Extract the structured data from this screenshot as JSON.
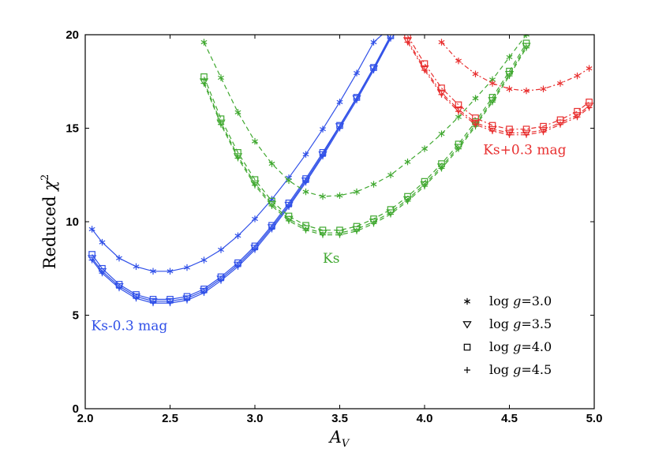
{
  "chart_data": {
    "type": "line",
    "xlabel": "A_V",
    "ylabel": "Reduced χ²",
    "xlim": [
      2.0,
      5.0
    ],
    "ylim": [
      0,
      20
    ],
    "xticks": [
      "2.0",
      "2.5",
      "3.0",
      "3.5",
      "4.0",
      "4.5",
      "5.0"
    ],
    "yticks": [
      "0",
      "5",
      "10",
      "15",
      "20"
    ],
    "legend_position": "bottom-right",
    "legend": [
      {
        "label": "log g=3.0",
        "marker": "asterisk"
      },
      {
        "label": "log g=3.5",
        "marker": "triangle-down"
      },
      {
        "label": "log g=4.0",
        "marker": "square"
      },
      {
        "label": "log g=4.5",
        "marker": "plus"
      }
    ],
    "annotations": [
      {
        "text": "Ks-0.3 mag",
        "color": "#3050e8",
        "at": [
          2.26,
          4.2
        ]
      },
      {
        "text": "Ks",
        "color": "#40a830",
        "at": [
          3.45,
          7.8
        ]
      },
      {
        "text": "Ks+0.3 mag",
        "color": "#e83030",
        "at": [
          4.59,
          13.6
        ]
      }
    ],
    "groups": [
      {
        "name": "Ks-0.3 mag",
        "color": "#3050e8",
        "series": [
          {
            "logg": 3.0,
            "marker": "asterisk",
            "x": [
              2.04,
              2.1,
              2.2,
              2.3,
              2.4,
              2.5,
              2.6,
              2.7,
              2.8,
              2.9,
              3.0,
              3.1,
              3.2,
              3.3,
              3.4,
              3.5,
              3.6,
              3.7,
              3.8
            ],
            "y": [
              9.6,
              8.9,
              8.05,
              7.6,
              7.35,
              7.35,
              7.55,
              7.95,
              8.5,
              9.25,
              10.15,
              11.2,
              12.35,
              13.6,
              14.95,
              16.4,
              17.95,
              19.6,
              20.4
            ]
          },
          {
            "logg": 3.5,
            "marker": "triangle-down",
            "x": [
              2.04,
              2.1,
              2.2,
              2.3,
              2.4,
              2.5,
              2.6,
              2.7,
              2.8,
              2.9,
              3.0,
              3.1,
              3.2,
              3.3,
              3.4,
              3.5,
              3.6,
              3.7,
              3.8
            ],
            "y": [
              8.05,
              7.35,
              6.55,
              6.0,
              5.75,
              5.75,
              5.9,
              6.3,
              6.95,
              7.7,
              8.6,
              9.7,
              10.9,
              12.2,
              13.6,
              15.1,
              16.6,
              18.2,
              19.9
            ]
          },
          {
            "logg": 4.0,
            "marker": "square",
            "x": [
              2.04,
              2.1,
              2.2,
              2.3,
              2.4,
              2.5,
              2.6,
              2.7,
              2.8,
              2.9,
              3.0,
              3.1,
              3.2,
              3.3,
              3.4,
              3.5,
              3.6,
              3.7,
              3.8
            ],
            "y": [
              8.25,
              7.5,
              6.65,
              6.1,
              5.85,
              5.85,
              6.0,
              6.4,
              7.05,
              7.8,
              8.7,
              9.8,
              11.0,
              12.3,
              13.7,
              15.15,
              16.65,
              18.25,
              19.95
            ]
          },
          {
            "logg": 4.5,
            "marker": "plus",
            "x": [
              2.04,
              2.1,
              2.2,
              2.3,
              2.4,
              2.5,
              2.6,
              2.7,
              2.8,
              2.9,
              3.0,
              3.1,
              3.2,
              3.3,
              3.4,
              3.5,
              3.6,
              3.7,
              3.8
            ],
            "y": [
              7.95,
              7.25,
              6.45,
              5.9,
              5.65,
              5.65,
              5.8,
              6.2,
              6.85,
              7.6,
              8.5,
              9.6,
              10.8,
              12.1,
              13.5,
              15.0,
              16.5,
              18.1,
              19.8
            ]
          }
        ]
      },
      {
        "name": "Ks",
        "color": "#40a830",
        "series": [
          {
            "logg": 3.0,
            "marker": "asterisk",
            "x": [
              2.7,
              2.8,
              2.9,
              3.0,
              3.1,
              3.2,
              3.3,
              3.4,
              3.5,
              3.6,
              3.7,
              3.8,
              3.9,
              4.0,
              4.1,
              4.2,
              4.3,
              4.4,
              4.5,
              4.6
            ],
            "y": [
              19.6,
              17.7,
              15.85,
              14.3,
              13.1,
              12.2,
              11.6,
              11.35,
              11.4,
              11.6,
              12.0,
              12.5,
              13.2,
              13.9,
              14.7,
              15.6,
              16.6,
              17.6,
              18.8,
              20.0
            ]
          },
          {
            "logg": 3.5,
            "marker": "triangle-down",
            "x": [
              2.7,
              2.8,
              2.9,
              3.0,
              3.1,
              3.2,
              3.3,
              3.4,
              3.5,
              3.6,
              3.7,
              3.8,
              3.9,
              4.0,
              4.1,
              4.2,
              4.3,
              4.4,
              4.5,
              4.6
            ],
            "y": [
              17.5,
              15.3,
              13.5,
              12.05,
              10.95,
              10.15,
              9.65,
              9.4,
              9.4,
              9.6,
              10.0,
              10.5,
              11.2,
              12.0,
              12.95,
              14.0,
              15.2,
              16.5,
              17.9,
              19.4
            ]
          },
          {
            "logg": 4.0,
            "marker": "square",
            "x": [
              2.7,
              2.8,
              2.9,
              3.0,
              3.1,
              3.2,
              3.3,
              3.4,
              3.5,
              3.6,
              3.7,
              3.8,
              3.9,
              4.0,
              4.1,
              4.2,
              4.3,
              4.4,
              4.5,
              4.6
            ],
            "y": [
              17.75,
              15.5,
              13.7,
              12.25,
              11.1,
              10.3,
              9.8,
              9.55,
              9.55,
              9.75,
              10.15,
              10.65,
              11.35,
              12.15,
              13.1,
              14.15,
              15.35,
              16.65,
              18.05,
              19.55
            ]
          },
          {
            "logg": 4.5,
            "marker": "plus",
            "x": [
              2.7,
              2.8,
              2.9,
              3.0,
              3.1,
              3.2,
              3.3,
              3.4,
              3.5,
              3.6,
              3.7,
              3.8,
              3.9,
              4.0,
              4.1,
              4.2,
              4.3,
              4.4,
              4.5,
              4.6
            ],
            "y": [
              17.4,
              15.2,
              13.4,
              11.95,
              10.85,
              10.05,
              9.55,
              9.3,
              9.3,
              9.5,
              9.9,
              10.4,
              11.1,
              11.9,
              12.85,
              13.9,
              15.1,
              16.4,
              17.8,
              19.3
            ]
          }
        ]
      },
      {
        "name": "Ks+0.3 mag",
        "color": "#e83030",
        "series": [
          {
            "logg": 3.0,
            "marker": "asterisk",
            "x": [
              4.1,
              4.2,
              4.3,
              4.4,
              4.5,
              4.6,
              4.7,
              4.8,
              4.9,
              4.97
            ],
            "y": [
              19.6,
              18.6,
              17.9,
              17.4,
              17.1,
              17.0,
              17.1,
              17.4,
              17.8,
              18.2
            ]
          },
          {
            "logg": 3.5,
            "marker": "triangle-down",
            "x": [
              3.9,
              4.0,
              4.1,
              4.2,
              4.3,
              4.4,
              4.5,
              4.6,
              4.7,
              4.8,
              4.9,
              4.97
            ],
            "y": [
              19.7,
              18.2,
              16.9,
              16.0,
              15.3,
              14.95,
              14.75,
              14.75,
              14.9,
              15.3,
              15.7,
              16.2
            ]
          },
          {
            "logg": 4.0,
            "marker": "square",
            "x": [
              3.9,
              4.0,
              4.1,
              4.2,
              4.3,
              4.4,
              4.5,
              4.6,
              4.7,
              4.8,
              4.9,
              4.97
            ],
            "y": [
              19.95,
              18.45,
              17.15,
              16.25,
              15.55,
              15.15,
              14.95,
              14.95,
              15.1,
              15.45,
              15.9,
              16.4
            ]
          },
          {
            "logg": 4.5,
            "marker": "plus",
            "x": [
              3.9,
              4.0,
              4.1,
              4.2,
              4.3,
              4.4,
              4.5,
              4.6,
              4.7,
              4.8,
              4.9,
              4.97
            ],
            "y": [
              19.6,
              18.1,
              16.8,
              15.9,
              15.2,
              14.85,
              14.65,
              14.65,
              14.8,
              15.2,
              15.6,
              16.1
            ]
          }
        ]
      }
    ]
  }
}
